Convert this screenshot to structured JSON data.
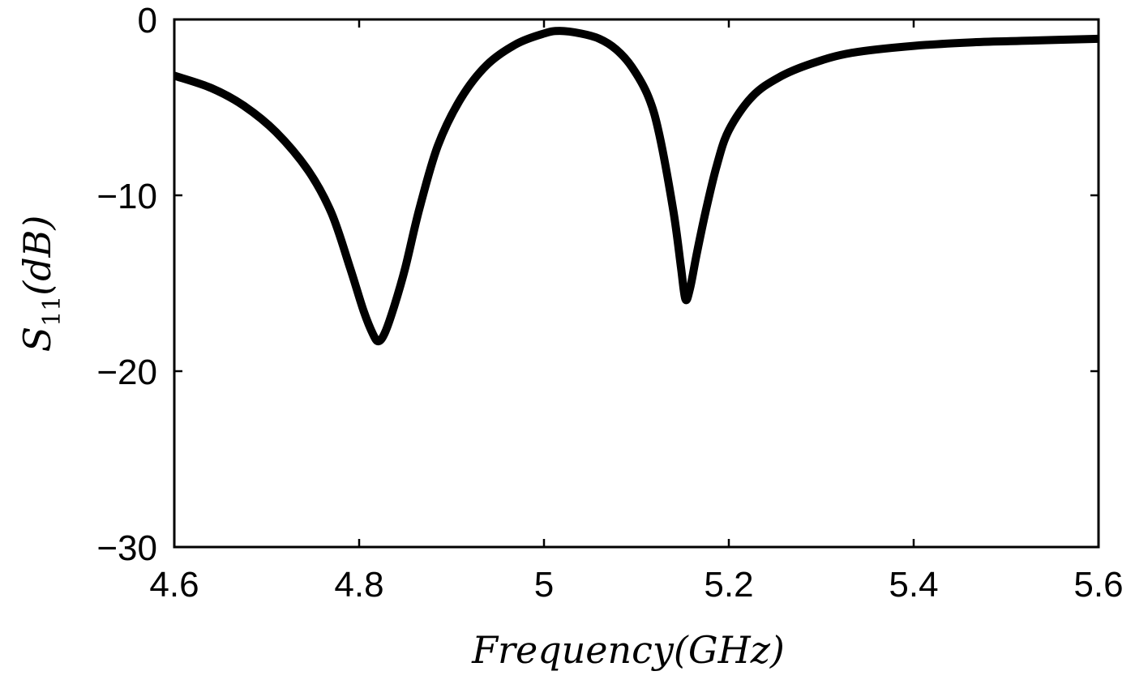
{
  "chart_data": {
    "type": "line",
    "title": "",
    "xlabel": "Frequency(GHz)",
    "ylabel": "S11(dB)",
    "ylabel_main": "S",
    "ylabel_sub": "11",
    "ylabel_unit": "(dB)",
    "xlim": [
      4.6,
      5.6
    ],
    "ylim": [
      -30,
      0
    ],
    "xticks": [
      4.6,
      4.8,
      5.0,
      5.2,
      5.4,
      5.6
    ],
    "xtick_labels": [
      "4.6",
      "4.8",
      "5",
      "5.2",
      "5.4",
      "5.6"
    ],
    "yticks": [
      0,
      -10,
      -20,
      -30
    ],
    "ytick_labels": [
      "0",
      "−10",
      "−20",
      "−30"
    ],
    "grid": false,
    "legend": null,
    "series": [
      {
        "name": "S11",
        "color": "#000000",
        "x": [
          4.6,
          4.64,
          4.675,
          4.71,
          4.745,
          4.77,
          4.79,
          4.805,
          4.815,
          4.821,
          4.828,
          4.838,
          4.85,
          4.865,
          4.885,
          4.91,
          4.938,
          4.97,
          5.0,
          5.017,
          5.04,
          5.06,
          5.078,
          5.095,
          5.113,
          5.125,
          5.14,
          5.148,
          5.153,
          5.158,
          5.165,
          5.175,
          5.187,
          5.2,
          5.225,
          5.254,
          5.29,
          5.333,
          5.4,
          5.464,
          5.53,
          5.6
        ],
        "y": [
          -3.2,
          -3.9,
          -4.9,
          -6.4,
          -8.6,
          -11.0,
          -14.1,
          -16.6,
          -17.9,
          -18.3,
          -17.8,
          -16.3,
          -14.1,
          -10.8,
          -7.2,
          -4.5,
          -2.6,
          -1.4,
          -0.8,
          -0.65,
          -0.8,
          -1.1,
          -1.7,
          -2.7,
          -4.4,
          -6.6,
          -10.9,
          -14.0,
          -15.9,
          -15.3,
          -13.4,
          -10.9,
          -8.3,
          -6.3,
          -4.4,
          -3.3,
          -2.5,
          -1.9,
          -1.5,
          -1.3,
          -1.2,
          -1.1
        ]
      }
    ],
    "annotations": {
      "minima": [
        {
          "x": 4.821,
          "y": -18.3
        },
        {
          "x": 5.153,
          "y": -15.9
        }
      ],
      "maximum": {
        "x": 5.017,
        "y": -0.65
      }
    }
  }
}
